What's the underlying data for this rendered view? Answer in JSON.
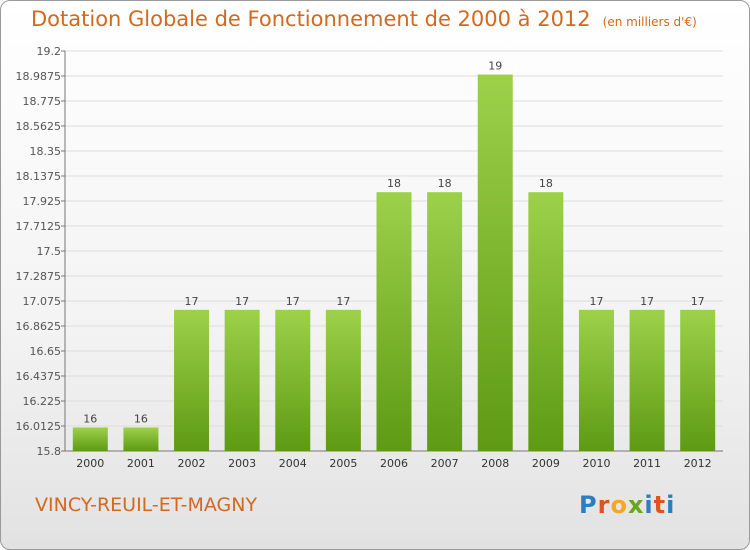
{
  "header": {
    "title": "Dotation Globale de Fonctionnement de 2000 à 2012",
    "subtitle": "(en milliers d'€)"
  },
  "footer": {
    "commune": "VINCY-REUIL-ET-MAGNY",
    "logo": {
      "text": "Proxiti",
      "letters": [
        {
          "char": "P",
          "color": "#2a7fc0"
        },
        {
          "char": "r",
          "color": "#e0531f"
        },
        {
          "char": "o",
          "color": "#f5a623"
        },
        {
          "char": "x",
          "color": "#6aa51e"
        },
        {
          "char": "i",
          "color": "#2a7fc0"
        },
        {
          "char": "t",
          "color": "#e0531f"
        },
        {
          "char": "i",
          "color": "#2a7fc0"
        }
      ]
    }
  },
  "colors": {
    "bar_top": "#9dd14a",
    "bar_bottom": "#5e9a14",
    "grid": "#dddddd",
    "text_accent": "#d2691e"
  },
  "chart_data": {
    "type": "bar",
    "categories": [
      "2000",
      "2001",
      "2002",
      "2003",
      "2004",
      "2005",
      "2006",
      "2007",
      "2008",
      "2009",
      "2010",
      "2011",
      "2012"
    ],
    "values": [
      16,
      16,
      17,
      17,
      17,
      17,
      18,
      18,
      19,
      18,
      17,
      17,
      17
    ],
    "plot_values": [
      16.0,
      16.0,
      17.0,
      17.0,
      17.0,
      17.0,
      18.0,
      18.0,
      19.0,
      18.0,
      17.0,
      17.0,
      17.0
    ],
    "data_labels": [
      "16",
      "16",
      "17",
      "17",
      "17",
      "17",
      "18",
      "18",
      "19",
      "18",
      "17",
      "17",
      "17"
    ],
    "ylim": [
      15.8,
      19.2
    ],
    "yticks": [
      "15.8",
      "16.0125",
      "16.225",
      "16.4375",
      "16.65",
      "16.8625",
      "17.075",
      "17.2875",
      "17.5",
      "17.7125",
      "17.925",
      "18.1375",
      "18.35",
      "18.5625",
      "18.775",
      "18.9875",
      "19.2"
    ],
    "grid": true,
    "legend": "none"
  }
}
